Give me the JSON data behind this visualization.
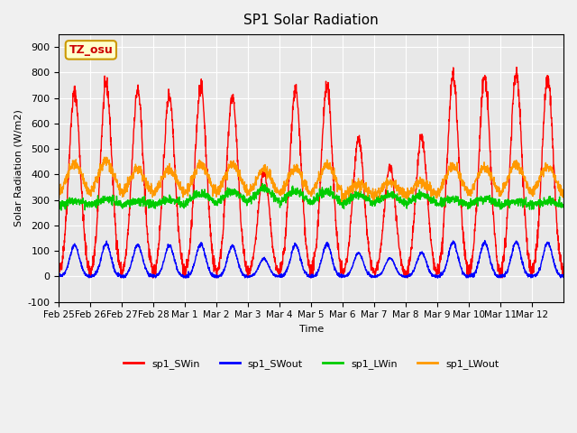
{
  "title": "SP1 Solar Radiation",
  "ylabel": "Solar Radiation (W/m2)",
  "xlabel": "Time",
  "ylim": [
    -100,
    950
  ],
  "yticks": [
    -100,
    0,
    100,
    200,
    300,
    400,
    500,
    600,
    700,
    800,
    900
  ],
  "x_tick_labels": [
    "Feb 25",
    "Feb 26",
    "Feb 27",
    "Feb 28",
    "Mar 1",
    "Mar 2",
    "Mar 3",
    "Mar 4",
    "Mar 5",
    "Mar 6",
    "Mar 7",
    "Mar 8",
    "Mar 9",
    "Mar 10",
    "Mar 11",
    "Mar 12"
  ],
  "colors": {
    "sp1_SWin": "#ff0000",
    "sp1_SWout": "#0000ff",
    "sp1_LWin": "#00cc00",
    "sp1_LWout": "#ff9900"
  },
  "annotation_text": "TZ_osu",
  "annotation_color": "#cc0000",
  "annotation_bg": "#ffffcc",
  "annotation_border": "#cc9900",
  "n_days": 16,
  "points_per_day": 144,
  "legend_items": [
    "sp1_SWin",
    "sp1_SWout",
    "sp1_LWin",
    "sp1_LWout"
  ],
  "grid_color": "#ffffff",
  "linewidth": 1.0,
  "sw_peaks": [
    725,
    755,
    730,
    712,
    750,
    706,
    410,
    730,
    745,
    540,
    430,
    545,
    790,
    780,
    800,
    775
  ],
  "lw_in_bumps": [
    20,
    30,
    20,
    25,
    50,
    60,
    70,
    60,
    60,
    45,
    45,
    45,
    30,
    30,
    20,
    20
  ],
  "lw_out_bumps": [
    130,
    145,
    110,
    110,
    130,
    130,
    110,
    110,
    130,
    50,
    60,
    60,
    120,
    120,
    130,
    120
  ]
}
